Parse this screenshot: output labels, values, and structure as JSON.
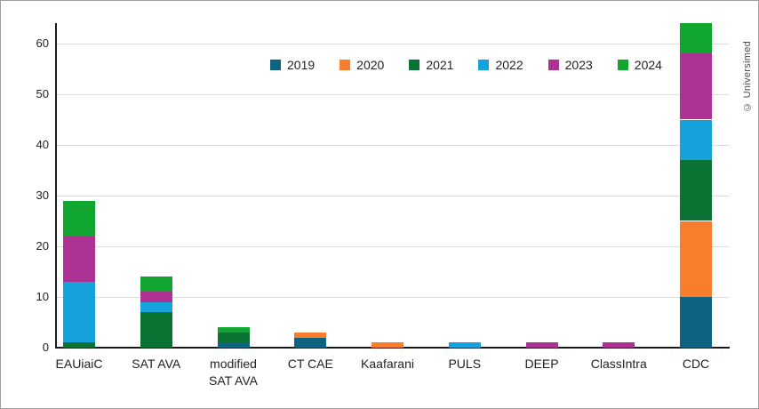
{
  "watermark": "© Universimed",
  "chart_data": {
    "type": "bar",
    "stacked": true,
    "title": "",
    "xlabel": "",
    "ylabel": "",
    "categories": [
      "EAUiaiC",
      "SAT AVA",
      "modified SAT AVA",
      "CT CAE",
      "Kaafarani",
      "PULS",
      "DEEP",
      "ClassIntra",
      "CDC"
    ],
    "series": [
      {
        "name": "2019",
        "color": "#0e6480",
        "values": [
          0,
          0,
          1,
          2,
          0,
          0,
          0,
          0,
          10
        ]
      },
      {
        "name": "2020",
        "color": "#f87d2c",
        "values": [
          0,
          0,
          0,
          1,
          1,
          0,
          0,
          0,
          15
        ]
      },
      {
        "name": "2021",
        "color": "#0a7233",
        "values": [
          1,
          7,
          2,
          0,
          0,
          0,
          0,
          0,
          12
        ]
      },
      {
        "name": "2022",
        "color": "#16a3dd",
        "values": [
          12,
          2,
          0,
          0,
          0,
          1,
          0,
          0,
          8
        ]
      },
      {
        "name": "2023",
        "color": "#ad3293",
        "values": [
          9,
          2,
          0,
          0,
          0,
          0,
          1,
          1,
          13
        ]
      },
      {
        "name": "2024",
        "color": "#10a62f",
        "values": [
          7,
          3,
          1,
          0,
          0,
          0,
          0,
          0,
          6
        ]
      }
    ],
    "totals": [
      29,
      14,
      4,
      3,
      1,
      1,
      1,
      1,
      64
    ],
    "ylim": [
      0,
      64
    ],
    "yticks": [
      0,
      10,
      20,
      30,
      40,
      50,
      60
    ],
    "grid": true,
    "legend_position": "top-center"
  }
}
